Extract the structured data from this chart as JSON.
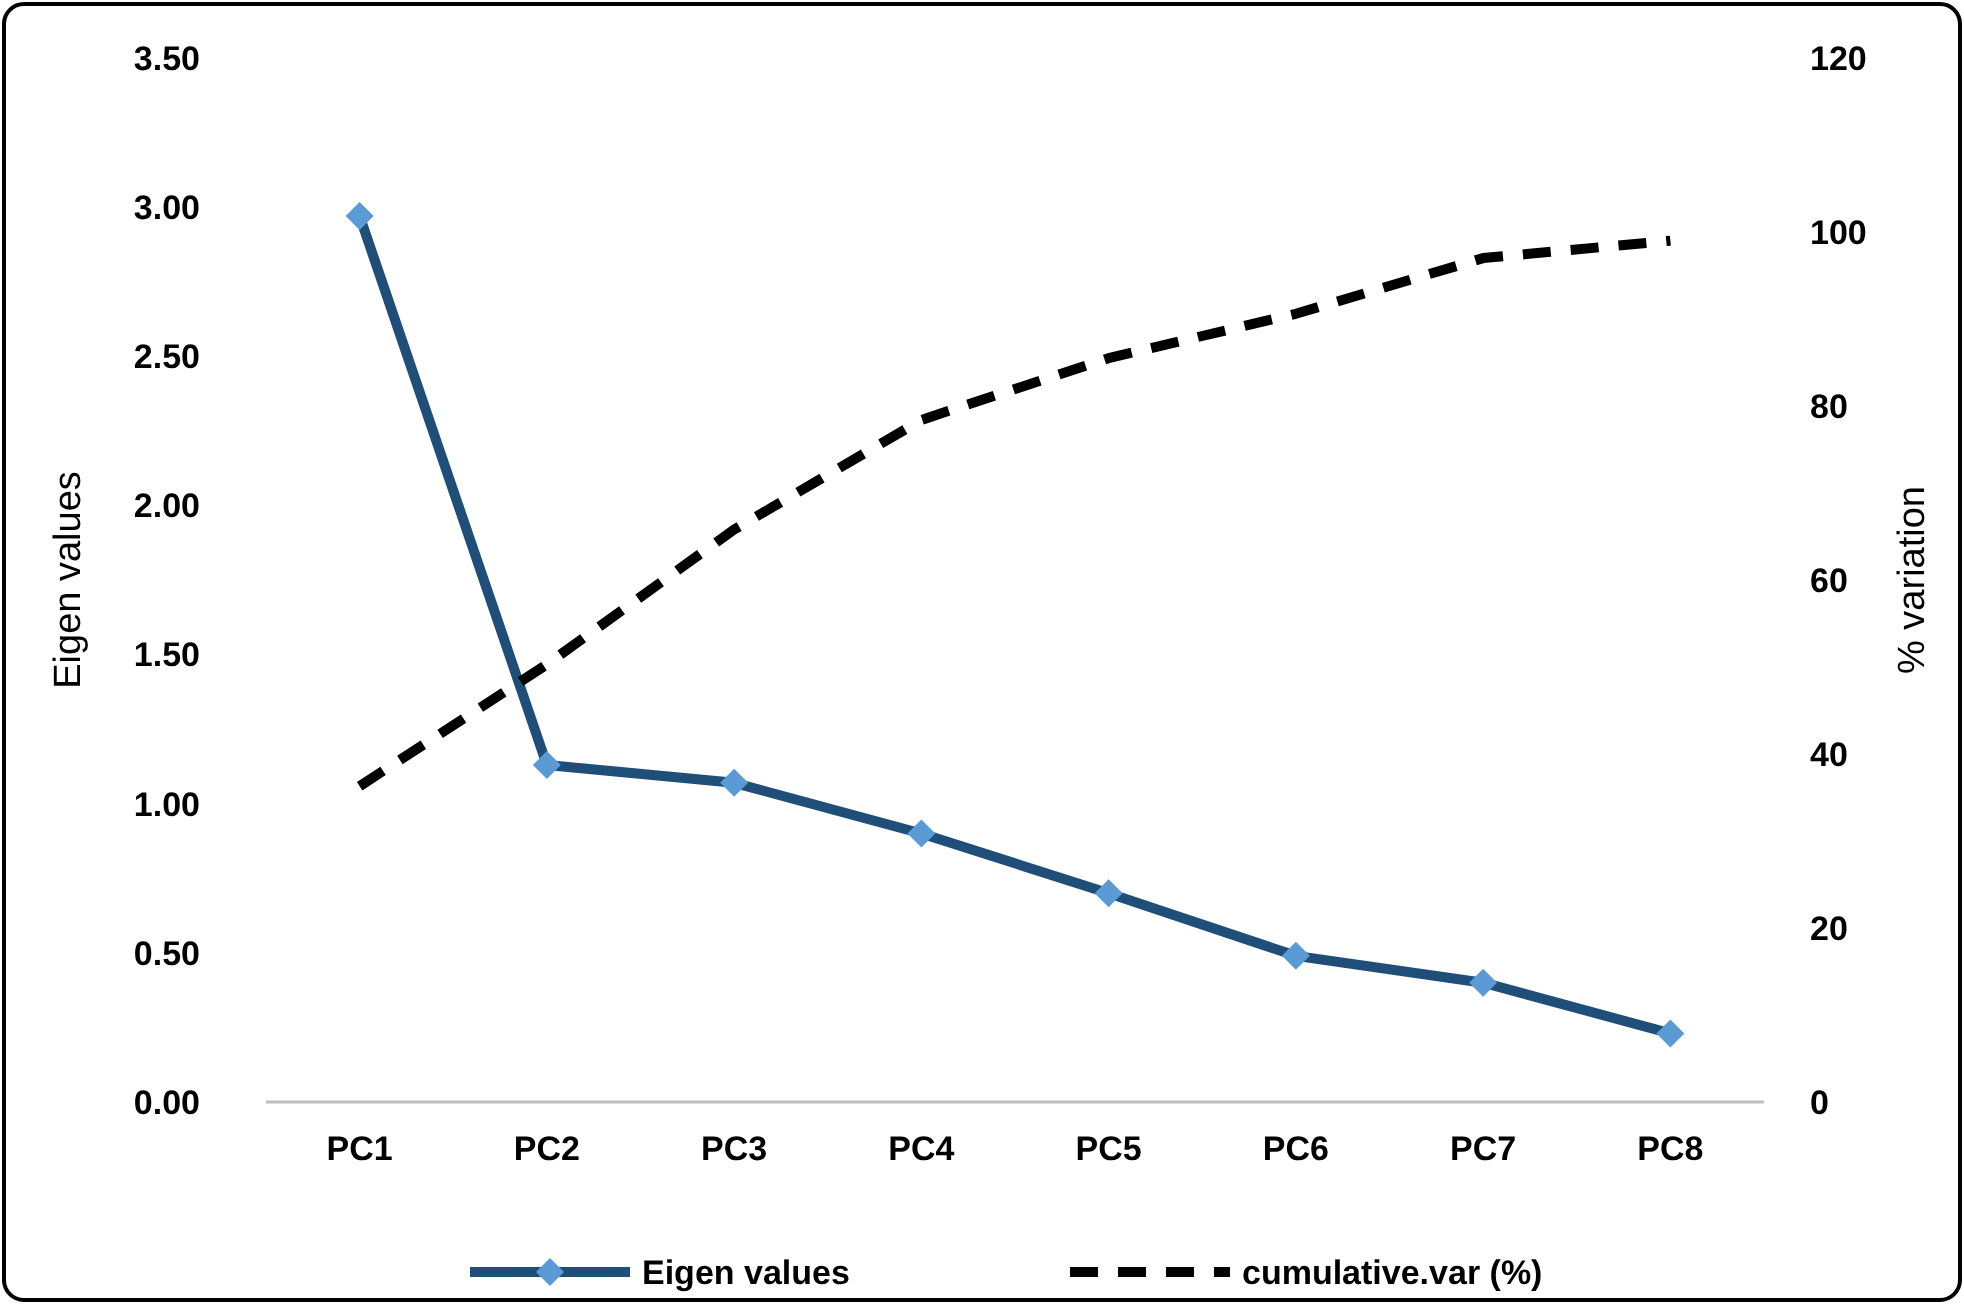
{
  "chart_data": {
    "type": "line",
    "categories": [
      "PC1",
      "PC2",
      "PC3",
      "PC4",
      "PC5",
      "PC6",
      "PC7",
      "PC8"
    ],
    "series": [
      {
        "name": "Eigen values",
        "color": "#1f4e79",
        "values": [
          2.97,
          1.13,
          1.07,
          0.9,
          0.7,
          0.49,
          0.4,
          0.23
        ],
        "marker": "diamond",
        "line_style": "solid"
      },
      {
        "name": "cumulative.var (%)",
        "color": "#000000",
        "values": [
          36.3,
          50.3,
          65.8,
          78.4,
          85.5,
          90.6,
          97,
          99
        ],
        "axis": "y2",
        "marker": "none",
        "line_style": "dashed"
      }
    ],
    "ylabel": "Eigen values",
    "y2label": "% variation",
    "ylim": [
      0,
      3.5
    ],
    "yticks": [
      {
        "value": 0,
        "label": "0.00"
      },
      {
        "value": 0.5,
        "label": "0.50"
      },
      {
        "value": 1,
        "label": "1.00"
      },
      {
        "value": 1.5,
        "label": "1.50"
      },
      {
        "value": 2,
        "label": "2.00"
      },
      {
        "value": 2.5,
        "label": "2.50"
      },
      {
        "value": 3,
        "label": "3.00"
      },
      {
        "value": 3.5,
        "label": "3.50"
      }
    ],
    "y2lim": [
      0,
      120
    ],
    "y2ticks": [
      0,
      20,
      40,
      60,
      80,
      100,
      120
    ],
    "legend": "bottom",
    "grid": false
  }
}
